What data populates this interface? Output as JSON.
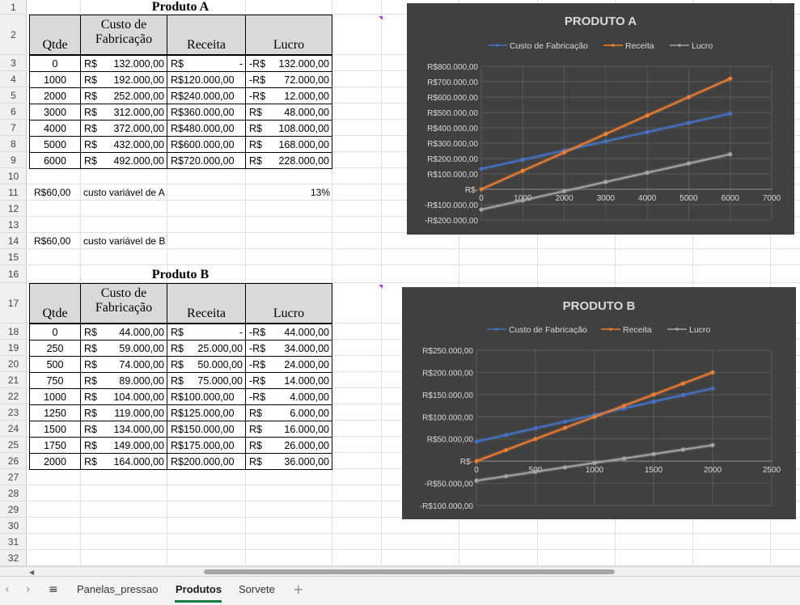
{
  "row_headers": [
    "1",
    "2",
    "3",
    "4",
    "5",
    "6",
    "7",
    "8",
    "9",
    "10",
    "11",
    "12",
    "13",
    "14",
    "15",
    "16",
    "17",
    "18",
    "19",
    "20",
    "21",
    "22",
    "23",
    "24",
    "25",
    "26",
    "27",
    "28",
    "29",
    "30",
    "31",
    "32"
  ],
  "table_a": {
    "title": "Produto A",
    "headers": {
      "qtde": "Qtde",
      "custo_l1": "Custo de",
      "custo_l2": "Fabricação",
      "receita": "Receita",
      "lucro": "Lucro"
    },
    "rows": [
      {
        "qtde": "0",
        "custo_p": "R$",
        "custo_v": "132.000,00",
        "receita_p": "R$",
        "receita_v": "-",
        "lucro_p": "-R$",
        "lucro_v": "132.000,00"
      },
      {
        "qtde": "1000",
        "custo_p": "R$",
        "custo_v": "192.000,00",
        "receita_p": "R$120.000,00",
        "receita_v": "",
        "lucro_p": "-R$",
        "lucro_v": "72.000,00"
      },
      {
        "qtde": "2000",
        "custo_p": "R$",
        "custo_v": "252.000,00",
        "receita_p": "R$240.000,00",
        "receita_v": "",
        "lucro_p": "-R$",
        "lucro_v": "12.000,00"
      },
      {
        "qtde": "3000",
        "custo_p": "R$",
        "custo_v": "312.000,00",
        "receita_p": "R$360.000,00",
        "receita_v": "",
        "lucro_p": "R$",
        "lucro_v": "48.000,00"
      },
      {
        "qtde": "4000",
        "custo_p": "R$",
        "custo_v": "372.000,00",
        "receita_p": "R$480.000,00",
        "receita_v": "",
        "lucro_p": "R$",
        "lucro_v": "108.000,00"
      },
      {
        "qtde": "5000",
        "custo_p": "R$",
        "custo_v": "432.000,00",
        "receita_p": "R$600.000,00",
        "receita_v": "",
        "lucro_p": "R$",
        "lucro_v": "168.000,00"
      },
      {
        "qtde": "6000",
        "custo_p": "R$",
        "custo_v": "492.000,00",
        "receita_p": "R$720.000,00",
        "receita_v": "",
        "lucro_p": "R$",
        "lucro_v": "228.000,00"
      }
    ],
    "var_value": "R$60,00",
    "var_label": "custo variável de A",
    "percent": "13%"
  },
  "row14": {
    "value": "R$60,00",
    "label": "custo variável de B"
  },
  "table_b": {
    "title": "Produto B",
    "headers": {
      "qtde": "Qtde",
      "custo_l1": "Custo de",
      "custo_l2": "Fabricação",
      "receita": "Receita",
      "lucro": "Lucro"
    },
    "rows": [
      {
        "qtde": "0",
        "custo_p": "R$",
        "custo_v": "44.000,00",
        "receita_p": "R$",
        "receita_v": "-",
        "lucro_p": "-R$",
        "lucro_v": "44.000,00"
      },
      {
        "qtde": "250",
        "custo_p": "R$",
        "custo_v": "59.000,00",
        "receita_p": "R$",
        "receita_v": "25.000,00",
        "lucro_p": "-R$",
        "lucro_v": "34.000,00"
      },
      {
        "qtde": "500",
        "custo_p": "R$",
        "custo_v": "74.000,00",
        "receita_p": "R$",
        "receita_v": "50.000,00",
        "lucro_p": "-R$",
        "lucro_v": "24.000,00"
      },
      {
        "qtde": "750",
        "custo_p": "R$",
        "custo_v": "89.000,00",
        "receita_p": "R$",
        "receita_v": "75.000,00",
        "lucro_p": "-R$",
        "lucro_v": "14.000,00"
      },
      {
        "qtde": "1000",
        "custo_p": "R$",
        "custo_v": "104.000,00",
        "receita_p": "R$100.000,00",
        "receita_v": "",
        "lucro_p": "-R$",
        "lucro_v": "4.000,00"
      },
      {
        "qtde": "1250",
        "custo_p": "R$",
        "custo_v": "119.000,00",
        "receita_p": "R$125.000,00",
        "receita_v": "",
        "lucro_p": "R$",
        "lucro_v": "6.000,00"
      },
      {
        "qtde": "1500",
        "custo_p": "R$",
        "custo_v": "134.000,00",
        "receita_p": "R$150.000,00",
        "receita_v": "",
        "lucro_p": "R$",
        "lucro_v": "16.000,00"
      },
      {
        "qtde": "1750",
        "custo_p": "R$",
        "custo_v": "149.000,00",
        "receita_p": "R$175.000,00",
        "receita_v": "",
        "lucro_p": "R$",
        "lucro_v": "26.000,00"
      },
      {
        "qtde": "2000",
        "custo_p": "R$",
        "custo_v": "164.000,00",
        "receita_p": "R$200.000,00",
        "receita_v": "",
        "lucro_p": "R$",
        "lucro_v": "36.000,00"
      }
    ]
  },
  "colors": {
    "bg": "#404040",
    "custo": "#4472c4",
    "receita": "#ed7d31",
    "lucro": "#a5a5a5",
    "accent": "#107c41"
  },
  "chart_data": [
    {
      "type": "line",
      "title": "PRODUTO A",
      "x": [
        0,
        1000,
        2000,
        3000,
        4000,
        5000,
        6000
      ],
      "series": [
        {
          "name": "Custo de Fabricação",
          "values": [
            132000,
            192000,
            252000,
            312000,
            372000,
            432000,
            492000
          ]
        },
        {
          "name": "Receita",
          "values": [
            0,
            120000,
            240000,
            360000,
            480000,
            600000,
            720000
          ]
        },
        {
          "name": "Lucro",
          "values": [
            -132000,
            -72000,
            -12000,
            48000,
            108000,
            168000,
            228000
          ]
        }
      ],
      "xlim": [
        0,
        7000
      ],
      "xticks": [
        "0",
        "1000",
        "2000",
        "3000",
        "4000",
        "5000",
        "6000",
        "7000"
      ],
      "ylim": [
        -200000,
        800000
      ],
      "yticks": [
        "-R$200.000,00",
        "-R$100.000,00",
        "R$-",
        "R$100.000,00",
        "R$200.000,00",
        "R$300.000,00",
        "R$400.000,00",
        "R$500.000,00",
        "R$600.000,00",
        "R$700.000,00",
        "R$800.000,00"
      ],
      "grid": true,
      "legend": "top"
    },
    {
      "type": "line",
      "title": "PRODUTO B",
      "x": [
        0,
        250,
        500,
        750,
        1000,
        1250,
        1500,
        1750,
        2000
      ],
      "series": [
        {
          "name": "Custo de Fabricação",
          "values": [
            44000,
            59000,
            74000,
            89000,
            104000,
            119000,
            134000,
            149000,
            164000
          ]
        },
        {
          "name": "Receita",
          "values": [
            0,
            25000,
            50000,
            75000,
            100000,
            125000,
            150000,
            175000,
            200000
          ]
        },
        {
          "name": "Lucro",
          "values": [
            -44000,
            -34000,
            -24000,
            -14000,
            -4000,
            6000,
            16000,
            26000,
            36000
          ]
        }
      ],
      "xlim": [
        0,
        2500
      ],
      "xticks": [
        "0",
        "500",
        "1000",
        "1500",
        "2000",
        "2500"
      ],
      "ylim": [
        -100000,
        250000
      ],
      "yticks": [
        "-R$100.000,00",
        "-R$50.000,00",
        "R$-",
        "R$50.000,00",
        "R$100.000,00",
        "R$150.000,00",
        "R$200.000,00",
        "R$250.000,00"
      ],
      "grid": true,
      "legend": "top"
    }
  ],
  "tabs": [
    {
      "label": "Panelas_pressao",
      "active": false
    },
    {
      "label": "Produtos",
      "active": true
    },
    {
      "label": "Sorvete",
      "active": false
    }
  ],
  "tab_add": "+",
  "nav": {
    "prev": "‹",
    "next": "›",
    "menu": "≡"
  }
}
